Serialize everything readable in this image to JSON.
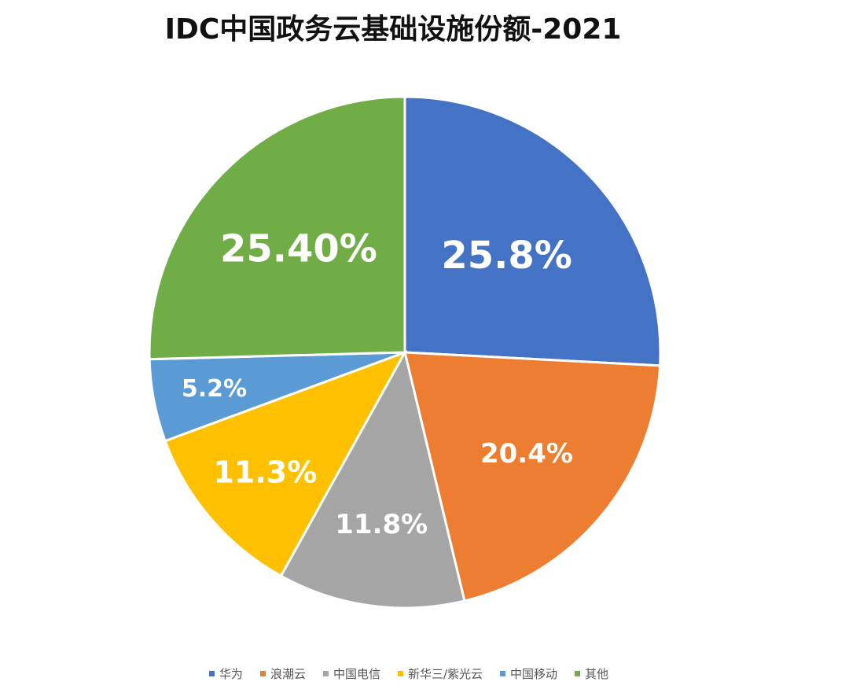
{
  "chart_data": {
    "type": "pie",
    "title": "IDC中国政务云基础设施份额-2021",
    "categories": [
      "华为",
      "浪潮云",
      "中国电信",
      "新华三/紫光云",
      "中国移动",
      "其他"
    ],
    "values": [
      25.8,
      20.4,
      11.8,
      11.3,
      5.2,
      25.4
    ],
    "labels": [
      "25.8%",
      "20.4%",
      "11.8%",
      "11.3%",
      "5.2%",
      "25.40%"
    ],
    "colors": [
      "#4472C4",
      "#ED7D31",
      "#A5A5A5",
      "#FFC000",
      "#5B9BD5",
      "#70AD47"
    ],
    "start_angle": "12 o'clock",
    "direction": "clockwise",
    "legend": "bottom"
  }
}
